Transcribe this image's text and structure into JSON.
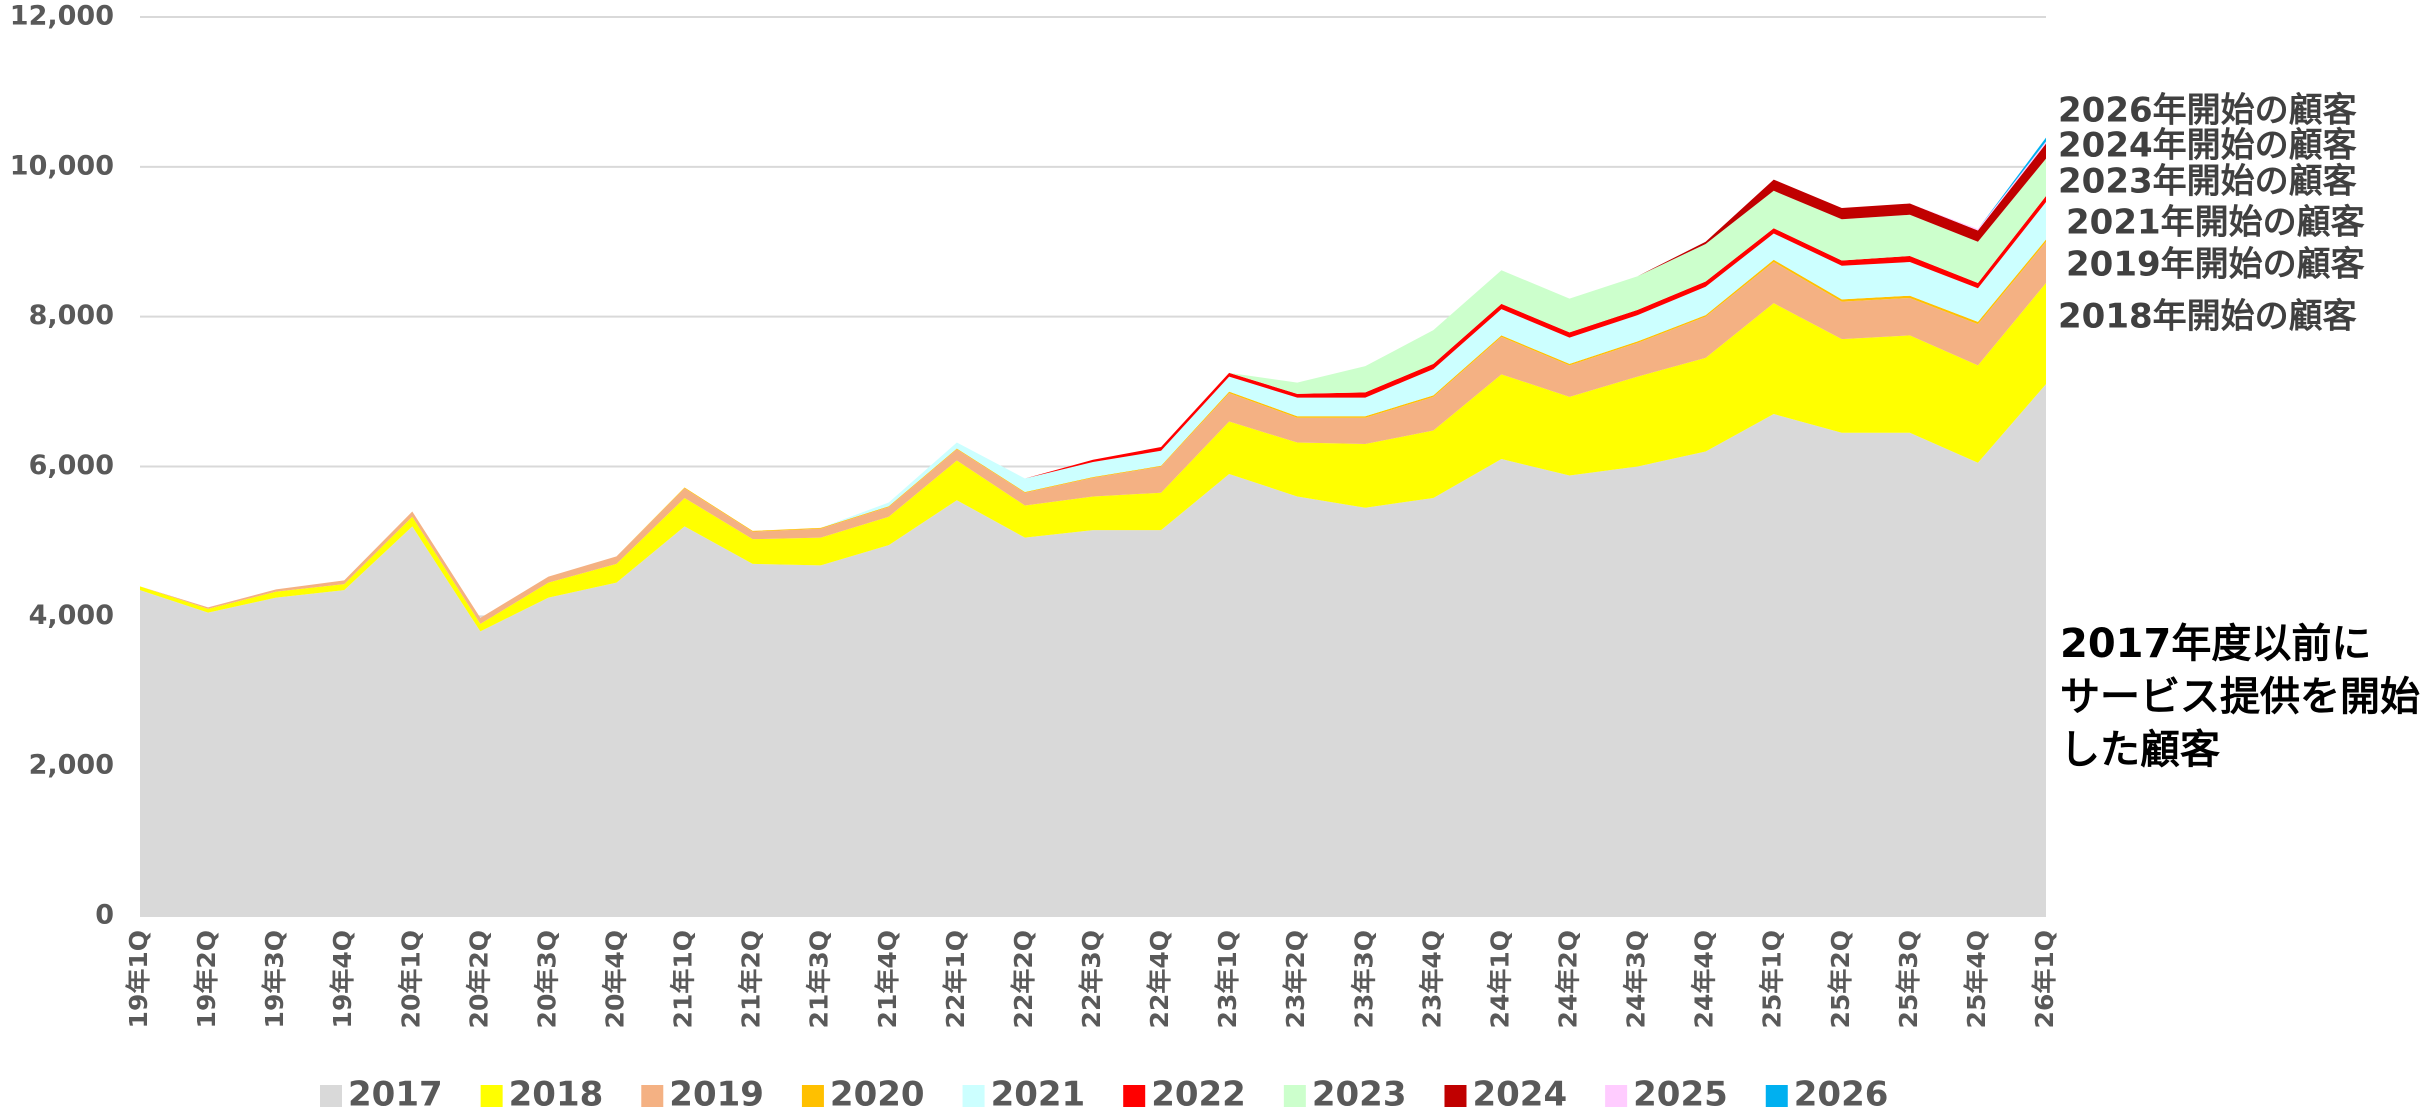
{
  "chart_data": {
    "type": "stacked_area",
    "categories": [
      "19年1Q",
      "19年2Q",
      "19年3Q",
      "19年4Q",
      "20年1Q",
      "20年2Q",
      "20年3Q",
      "20年4Q",
      "21年1Q",
      "21年2Q",
      "21年3Q",
      "21年4Q",
      "22年1Q",
      "22年2Q",
      "22年3Q",
      "22年4Q",
      "23年1Q",
      "23年2Q",
      "23年3Q",
      "23年4Q",
      "24年1Q",
      "24年2Q",
      "24年3Q",
      "24年4Q",
      "25年1Q",
      "25年2Q",
      "25年3Q",
      "25年4Q",
      "26年1Q"
    ],
    "series": [
      {
        "name": "2017",
        "color": "#d9d9d9",
        "values": [
          4350,
          4050,
          4250,
          4350,
          5200,
          3800,
          4250,
          4450,
          5200,
          4700,
          4680,
          4950,
          5550,
          5050,
          5150,
          5150,
          5900,
          5600,
          5450,
          5580,
          6100,
          5880,
          6000,
          6200,
          6700,
          6450,
          6450,
          6050,
          7100
        ]
      },
      {
        "name": "2018",
        "color": "#ffff00",
        "values": [
          50,
          50,
          80,
          80,
          130,
          100,
          200,
          250,
          380,
          330,
          370,
          380,
          530,
          430,
          450,
          500,
          700,
          720,
          850,
          900,
          1130,
          1050,
          1200,
          1250,
          1480,
          1250,
          1300,
          1300,
          1350
        ]
      },
      {
        "name": "2019",
        "color": "#f4b183",
        "values": [
          0,
          20,
          30,
          50,
          70,
          80,
          80,
          100,
          130,
          100,
          120,
          130,
          150,
          170,
          250,
          350,
          380,
          330,
          350,
          450,
          500,
          420,
          450,
          550,
          550,
          500,
          500,
          550,
          550
        ]
      },
      {
        "name": "2020",
        "color": "#ffc000",
        "values": [
          0,
          0,
          0,
          0,
          0,
          0,
          0,
          0,
          10,
          10,
          10,
          10,
          10,
          10,
          10,
          10,
          20,
          20,
          20,
          20,
          20,
          20,
          20,
          20,
          30,
          30,
          30,
          30,
          30
        ]
      },
      {
        "name": "2021",
        "color": "#ccffff",
        "values": [
          0,
          0,
          0,
          0,
          0,
          0,
          0,
          0,
          0,
          0,
          0,
          50,
          80,
          180,
          200,
          200,
          200,
          250,
          250,
          350,
          350,
          350,
          350,
          380,
          350,
          450,
          450,
          450,
          500
        ]
      },
      {
        "name": "2022",
        "color": "#ff0000",
        "values": [
          0,
          0,
          0,
          0,
          0,
          0,
          0,
          0,
          0,
          0,
          0,
          0,
          0,
          0,
          30,
          50,
          50,
          50,
          70,
          70,
          70,
          70,
          70,
          70,
          70,
          70,
          80,
          70,
          80
        ]
      },
      {
        "name": "2023",
        "color": "#ccffcc",
        "values": [
          0,
          0,
          0,
          0,
          0,
          0,
          0,
          0,
          0,
          0,
          0,
          0,
          0,
          0,
          0,
          0,
          0,
          150,
          350,
          450,
          450,
          450,
          450,
          500,
          500,
          550,
          550,
          550,
          500
        ]
      },
      {
        "name": "2024",
        "color": "#c00000",
        "values": [
          0,
          0,
          0,
          0,
          0,
          0,
          0,
          0,
          0,
          0,
          0,
          0,
          0,
          0,
          0,
          0,
          0,
          0,
          0,
          0,
          0,
          0,
          0,
          30,
          150,
          150,
          150,
          150,
          200
        ]
      },
      {
        "name": "2025",
        "color": "#ffccff",
        "values": [
          0,
          0,
          0,
          0,
          0,
          0,
          0,
          0,
          0,
          0,
          0,
          0,
          0,
          0,
          0,
          0,
          0,
          0,
          0,
          0,
          0,
          0,
          0,
          0,
          0,
          0,
          0,
          20,
          30
        ]
      },
      {
        "name": "2026",
        "color": "#00b0f0",
        "values": [
          0,
          0,
          0,
          0,
          0,
          0,
          0,
          0,
          0,
          0,
          0,
          0,
          0,
          0,
          0,
          0,
          0,
          0,
          0,
          0,
          0,
          0,
          0,
          0,
          0,
          0,
          0,
          0,
          50
        ]
      }
    ],
    "ylim": [
      0,
      12000
    ],
    "yticks": [
      0,
      {
        "value": 2000,
        "label": "2,000"
      },
      {
        "value": 4000,
        "label": "4,000"
      },
      {
        "value": 6000,
        "label": "6,000"
      },
      {
        "value": 8000,
        "label": "8,000"
      },
      {
        "value": 10000,
        "label": "10,000"
      },
      {
        "value": 12000,
        "label": "12,000"
      }
    ],
    "grid": true,
    "annotations": [
      "2026年開始の顧客",
      "2024年開始の顧客",
      "2023年開始の顧客",
      "2021年開始の顧客",
      "2019年開始の顧客",
      "2018年開始の顧客"
    ],
    "note_2017": [
      "2017年度以前に",
      "サービス提供を開始",
      "した顧客"
    ]
  }
}
